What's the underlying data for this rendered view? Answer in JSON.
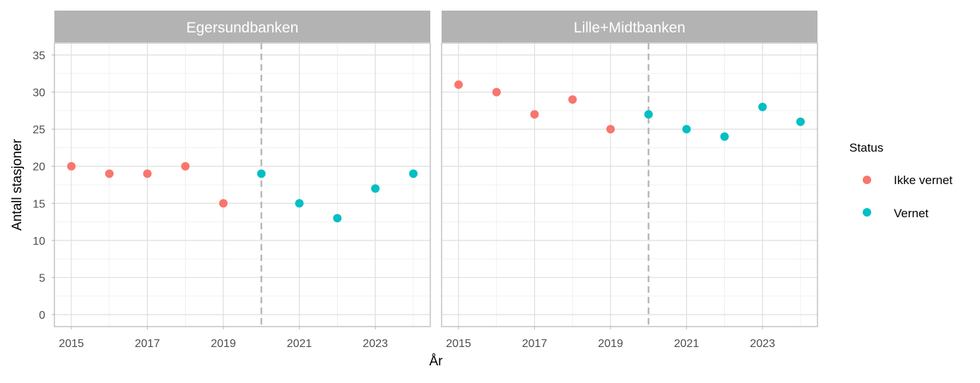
{
  "chart_data": {
    "type": "scatter",
    "xlabel": "År",
    "ylabel": "Antall stasjoner",
    "xlim": [
      2015,
      2024
    ],
    "ylim": [
      0,
      35
    ],
    "x_ticks": [
      2015,
      2017,
      2019,
      2021,
      2023
    ],
    "y_ticks": [
      0,
      5,
      10,
      15,
      20,
      25,
      30,
      35
    ],
    "reference_line_x": 2020,
    "grid": true,
    "legend": {
      "title": "Status",
      "position": "right",
      "entries": [
        {
          "label": "Ikke vernet",
          "color": "#F8766D"
        },
        {
          "label": "Vernet",
          "color": "#00BFC4"
        }
      ]
    },
    "panels": [
      {
        "title": "Egersundbanken",
        "points": [
          {
            "x": 2015,
            "y": 20,
            "status": "Ikke vernet"
          },
          {
            "x": 2016,
            "y": 19,
            "status": "Ikke vernet"
          },
          {
            "x": 2017,
            "y": 19,
            "status": "Ikke vernet"
          },
          {
            "x": 2018,
            "y": 20,
            "status": "Ikke vernet"
          },
          {
            "x": 2019,
            "y": 15,
            "status": "Ikke vernet"
          },
          {
            "x": 2020,
            "y": 19,
            "status": "Vernet"
          },
          {
            "x": 2021,
            "y": 15,
            "status": "Vernet"
          },
          {
            "x": 2022,
            "y": 13,
            "status": "Vernet"
          },
          {
            "x": 2023,
            "y": 17,
            "status": "Vernet"
          },
          {
            "x": 2024,
            "y": 19,
            "status": "Vernet"
          }
        ]
      },
      {
        "title": "Lille+Midtbanken",
        "points": [
          {
            "x": 2015,
            "y": 31,
            "status": "Ikke vernet"
          },
          {
            "x": 2016,
            "y": 30,
            "status": "Ikke vernet"
          },
          {
            "x": 2017,
            "y": 27,
            "status": "Ikke vernet"
          },
          {
            "x": 2018,
            "y": 29,
            "status": "Ikke vernet"
          },
          {
            "x": 2019,
            "y": 25,
            "status": "Ikke vernet"
          },
          {
            "x": 2020,
            "y": 27,
            "status": "Vernet"
          },
          {
            "x": 2021,
            "y": 25,
            "status": "Vernet"
          },
          {
            "x": 2022,
            "y": 24,
            "status": "Vernet"
          },
          {
            "x": 2023,
            "y": 28,
            "status": "Vernet"
          },
          {
            "x": 2024,
            "y": 26,
            "status": "Vernet"
          }
        ]
      }
    ]
  }
}
